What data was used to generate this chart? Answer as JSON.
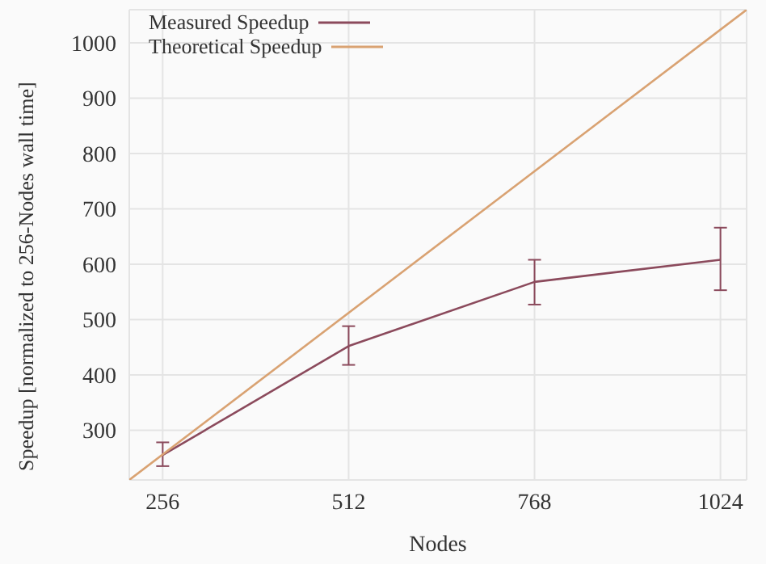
{
  "chart_data": {
    "type": "line",
    "xlabel": "Nodes",
    "ylabel": "Speedup [normalized to 256-Nodes wall time]",
    "xlim": [
      210,
      1060
    ],
    "ylim": [
      210,
      1060
    ],
    "xticks": [
      256,
      512,
      768,
      1024
    ],
    "yticks": [
      300,
      400,
      500,
      600,
      700,
      800,
      900,
      1000
    ],
    "grid": true,
    "legend": "top left",
    "marker": "none",
    "line_style": "solid",
    "series": [
      {
        "name": "Measured Speedup",
        "color": "#8b4a5c",
        "x": [
          256,
          512,
          768,
          1024
        ],
        "values": [
          255,
          452,
          568,
          608
        ],
        "errors": [
          [
            235,
            278
          ],
          [
            418,
            488
          ],
          [
            527,
            608
          ],
          [
            553,
            666
          ]
        ]
      },
      {
        "name": "Theoretical Speedup",
        "color": "#d9a272",
        "x": [
          210,
          1060
        ],
        "values": [
          210,
          1060
        ]
      }
    ]
  }
}
